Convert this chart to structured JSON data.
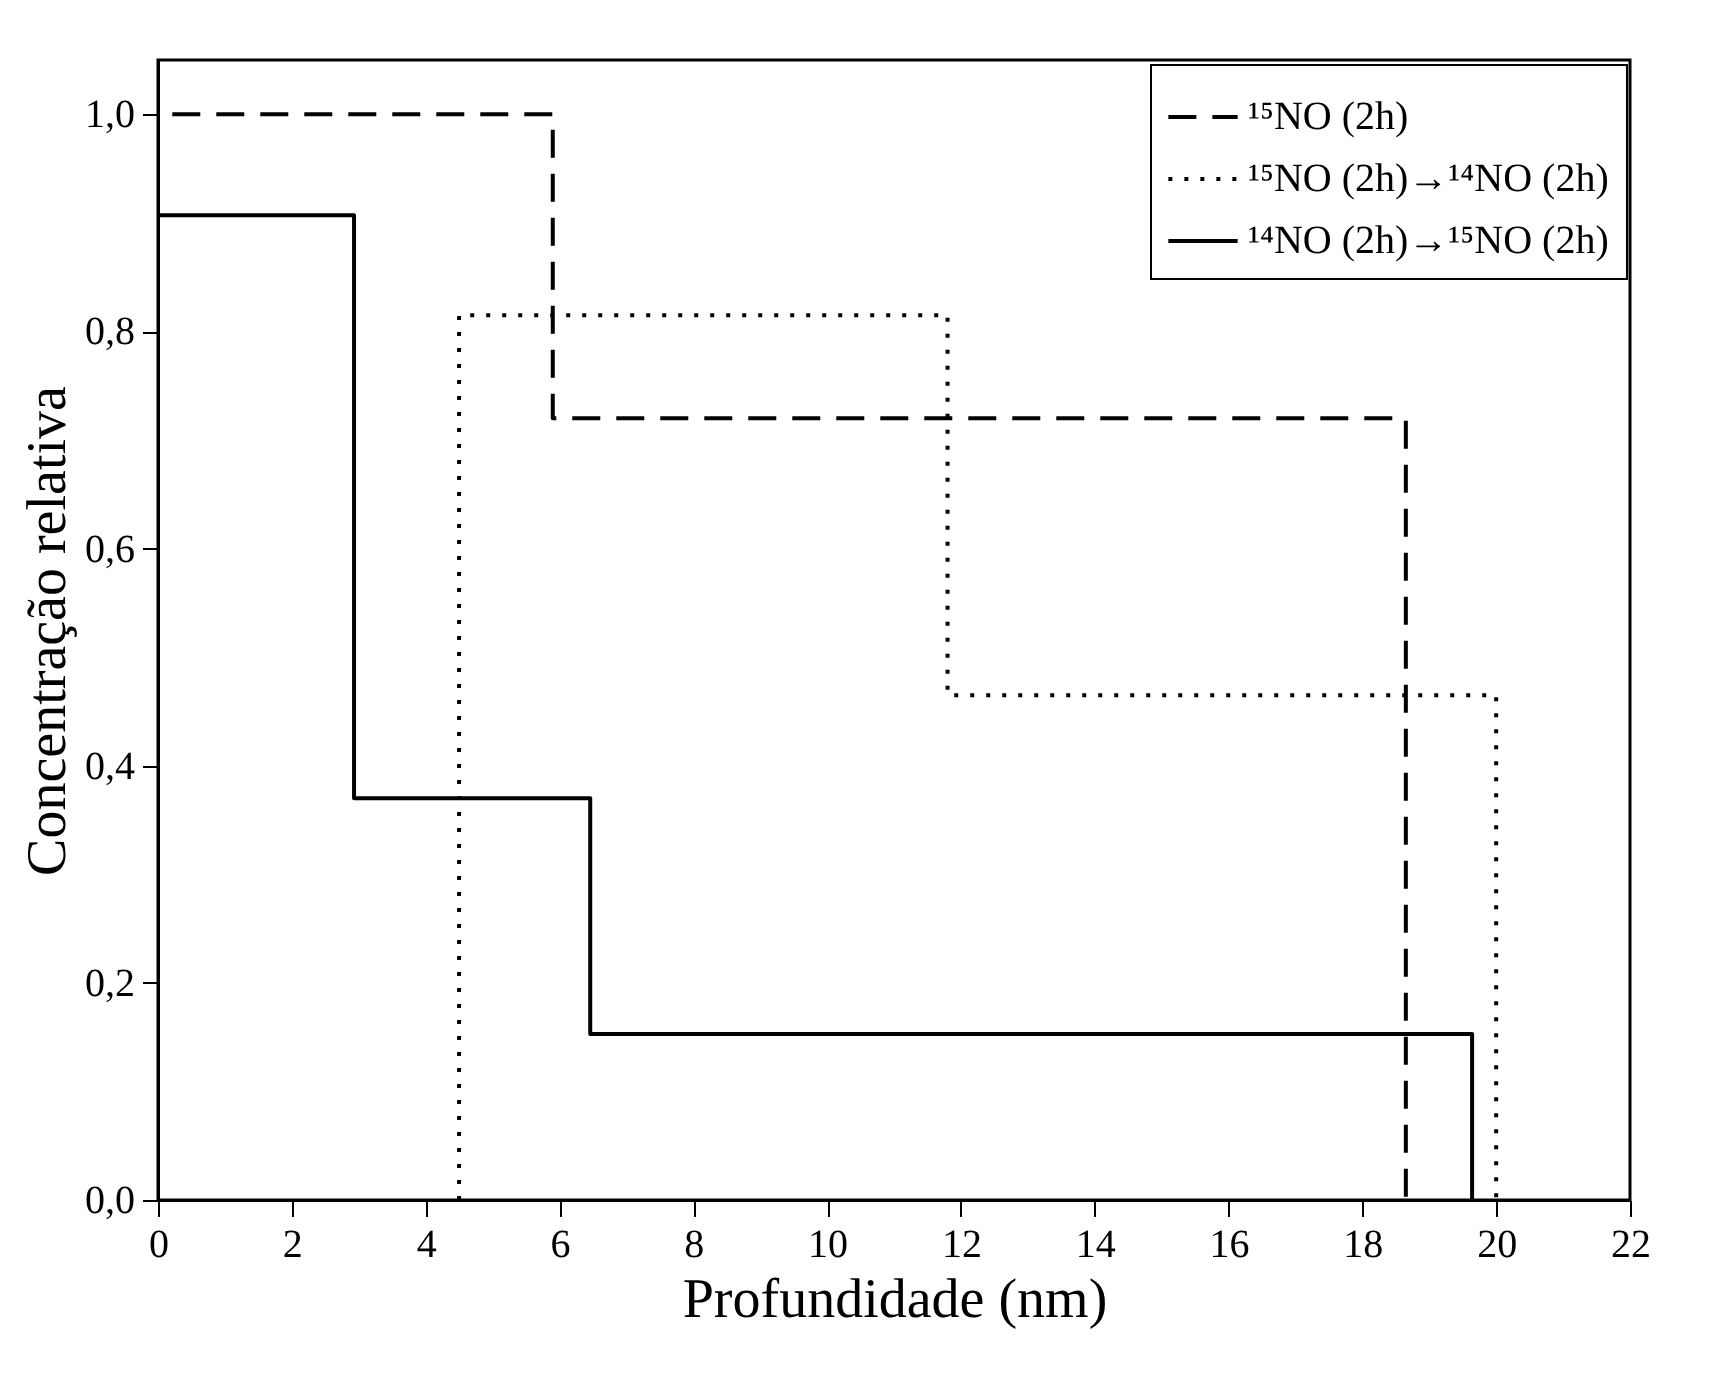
{
  "chart_data": {
    "type": "step",
    "xlabel": "Profundidade (nm)",
    "ylabel": "Concentração relativa",
    "xlim": [
      0,
      22
    ],
    "xticks": [
      0,
      2,
      4,
      6,
      8,
      10,
      12,
      14,
      16,
      18,
      20,
      22
    ],
    "ylim": [
      0,
      1.05
    ],
    "yticks": [
      {
        "value": 0,
        "label": "0,0"
      },
      {
        "value": 0.2,
        "label": "0,2"
      },
      {
        "value": 0.4,
        "label": "0,4"
      },
      {
        "value": 0.6,
        "label": "0,6"
      },
      {
        "value": 0.8,
        "label": "0,8"
      },
      {
        "value": 1.0,
        "label": "1,0"
      }
    ],
    "grid": false,
    "legend": "top right",
    "series": [
      {
        "name": "¹⁵NO (2h)",
        "color": "#000000",
        "line_style": "dashed",
        "x": [
          0,
          0,
          5.9,
          18.65
        ],
        "values": [
          0,
          1.0,
          0.72,
          0
        ]
      },
      {
        "name": "¹⁵NO (2h)→¹⁴NO (2h)",
        "color": "#000000",
        "line_style": "dotted",
        "x": [
          4.5,
          4.5,
          11.8,
          20.0
        ],
        "values": [
          0,
          0.815,
          0.465,
          0
        ]
      },
      {
        "name": "¹⁴NO (2h)→¹⁵NO (2h)",
        "color": "#000000",
        "line_style": "solid",
        "x": [
          0,
          0,
          2.93,
          6.46,
          19.64
        ],
        "values": [
          0,
          0.907,
          0.37,
          0.153,
          0
        ]
      }
    ]
  }
}
